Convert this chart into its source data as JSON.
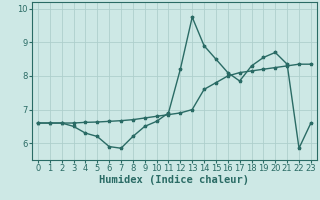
{
  "xlabel": "Humidex (Indice chaleur)",
  "background_color": "#cde8e5",
  "grid_color": "#aecfcc",
  "line_color": "#2a6b65",
  "xlim": [
    -0.5,
    23.5
  ],
  "ylim": [
    5.5,
    10.2
  ],
  "yticks": [
    6,
    7,
    8,
    9,
    10
  ],
  "xticks": [
    0,
    1,
    2,
    3,
    4,
    5,
    6,
    7,
    8,
    9,
    10,
    11,
    12,
    13,
    14,
    15,
    16,
    17,
    18,
    19,
    20,
    21,
    22,
    23
  ],
  "x": [
    0,
    1,
    2,
    3,
    4,
    5,
    6,
    7,
    8,
    9,
    10,
    11,
    12,
    13,
    14,
    15,
    16,
    17,
    18,
    19,
    20,
    21,
    22,
    23
  ],
  "y_curve": [
    6.6,
    6.6,
    6.6,
    6.5,
    6.3,
    6.2,
    5.9,
    5.85,
    6.2,
    6.5,
    6.65,
    6.9,
    8.2,
    9.75,
    8.9,
    8.5,
    8.1,
    7.85,
    8.3,
    8.55,
    8.7,
    8.35,
    5.85,
    6.6
  ],
  "y_trend": [
    6.6,
    6.6,
    6.6,
    6.6,
    6.62,
    6.63,
    6.65,
    6.67,
    6.7,
    6.75,
    6.8,
    6.85,
    6.9,
    7.0,
    7.6,
    7.8,
    8.0,
    8.1,
    8.15,
    8.2,
    8.25,
    8.3,
    8.35,
    8.35
  ],
  "tick_fontsize": 6.0,
  "xlabel_fontsize": 7.5,
  "linewidth": 1.0,
  "markersize": 2.5
}
